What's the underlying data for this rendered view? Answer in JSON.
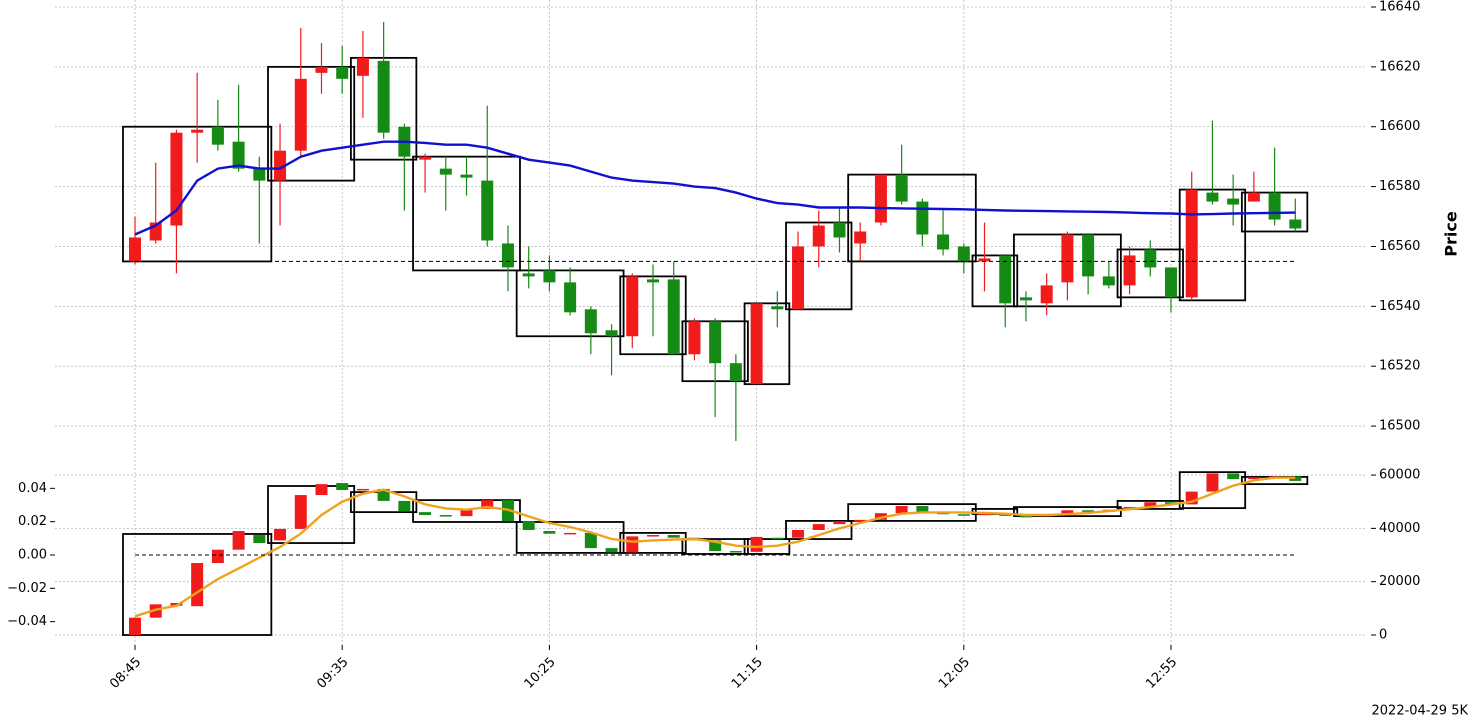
{
  "chart_data": [
    {
      "type": "candlestick",
      "ylabel": "Price",
      "up_color": "#f21b1b",
      "down_color": "#158a15",
      "grid": true,
      "y_side": "right",
      "categories": [
        "08:45",
        null,
        null,
        null,
        null,
        null,
        null,
        null,
        null,
        null,
        "09:35",
        null,
        null,
        null,
        null,
        null,
        null,
        null,
        null,
        null,
        "10:25",
        null,
        null,
        null,
        null,
        null,
        null,
        null,
        null,
        null,
        "11:15",
        null,
        null,
        null,
        null,
        null,
        null,
        null,
        null,
        null,
        "12:05",
        null,
        null,
        null,
        null,
        null,
        null,
        null,
        null,
        null,
        "12:55",
        null,
        null,
        null,
        null,
        null,
        null
      ],
      "open": [
        16555,
        16562,
        16567,
        16598,
        16600,
        16595,
        16586,
        16582,
        16592,
        16618,
        16620,
        16617,
        16622,
        16600,
        16589,
        16586,
        16584,
        16582,
        16561,
        16551,
        16552,
        16548,
        16539,
        16532,
        16530,
        16549,
        16549,
        16524,
        16535,
        16521,
        16514,
        16540,
        16539,
        16560,
        16568,
        16561,
        16568,
        16584,
        16575,
        16564,
        16560,
        16555,
        16557,
        16543,
        16541,
        16548,
        16564,
        16550,
        16547,
        16559,
        16553,
        16543,
        16578,
        16576,
        16575,
        16578,
        16569
      ],
      "high": [
        16570,
        16588,
        16599,
        16618,
        16609,
        16614,
        16590,
        16601,
        16633,
        16628,
        16627,
        16632,
        16635,
        16601,
        16591,
        16590,
        16590,
        16607,
        16567,
        16560,
        16557,
        16553,
        16540,
        16534,
        16551,
        16554,
        16555,
        16536,
        16536,
        16524,
        16541,
        16545,
        16565,
        16572,
        16573,
        16568,
        16584,
        16594,
        16576,
        16572,
        16561,
        16568,
        16557,
        16545,
        16551,
        16565,
        16564,
        16555,
        16560,
        16562,
        16553,
        16585,
        16602,
        16584,
        16585,
        16593,
        16576
      ],
      "low": [
        16554,
        16561,
        16551,
        16588,
        16592,
        16585,
        16561,
        16567,
        16590,
        16611,
        16611,
        16603,
        16596,
        16572,
        16578,
        16572,
        16577,
        16560,
        16545,
        16546,
        16545,
        16537,
        16524,
        16517,
        16526,
        16530,
        16524,
        16522,
        16503,
        16495,
        16514,
        16533,
        16539,
        16553,
        16558,
        16555,
        16567,
        16574,
        16560,
        16557,
        16551,
        16545,
        16533,
        16535,
        16537,
        16542,
        16544,
        16546,
        16544,
        16550,
        16538,
        16542,
        16574,
        16567,
        16575,
        16567,
        16565
      ],
      "close": [
        16563,
        16568,
        16598,
        16599,
        16594,
        16586,
        16582,
        16592,
        16616,
        16620,
        16616,
        16623,
        16598,
        16590,
        16590,
        16584,
        16583,
        16562,
        16553,
        16550,
        16548,
        16538,
        16531,
        16530,
        16550,
        16548,
        16524,
        16535,
        16521,
        16515,
        16541,
        16539,
        16560,
        16567,
        16563,
        16565,
        16584,
        16575,
        16564,
        16559,
        16555,
        16556,
        16541,
        16542,
        16547,
        16564,
        16550,
        16547,
        16557,
        16553,
        16543,
        16579,
        16575,
        16574,
        16578,
        16569,
        16566
      ],
      "ma": {
        "color": "#1010d0",
        "values": [
          16564,
          16567,
          16572,
          16582,
          16586,
          16587,
          16586,
          16586,
          16590,
          16592,
          16593,
          16594,
          16595,
          16595,
          16594.6,
          16594,
          16594,
          16593,
          16591,
          16589,
          16588,
          16587,
          16585,
          16583,
          16582,
          16581.5,
          16581,
          16580,
          16579.5,
          16578,
          16576,
          16574.5,
          16574,
          16573,
          16573,
          16573,
          16572.8,
          16572.7,
          16572.6,
          16572.5,
          16572.4,
          16572.2,
          16572,
          16571.9,
          16571.8,
          16571.7,
          16571.6,
          16571.5,
          16571.3,
          16571.1,
          16571,
          16570.7,
          16570.8,
          16571,
          16571.1,
          16571.2,
          16571.3
        ]
      },
      "box_start": [
        0,
        7,
        11,
        14,
        19,
        24,
        27,
        30,
        32,
        35,
        41,
        43,
        48,
        51,
        54
      ],
      "box_end": [
        6,
        10,
        13,
        18,
        23,
        26,
        29,
        31,
        34,
        40,
        42,
        47,
        50,
        53,
        56
      ],
      "box_high": [
        16600,
        16620,
        16623,
        16590,
        16552,
        16550,
        16535,
        16541,
        16568,
        16584,
        16557,
        16564,
        16559,
        16579,
        16578
      ],
      "box_low": [
        16555,
        16582,
        16589,
        16552,
        16530,
        16524,
        16515,
        16514,
        16539,
        16555,
        16540,
        16540,
        16543,
        16542,
        16565
      ],
      "reference": 16555,
      "ylim": [
        16490,
        16642
      ],
      "yticks": [
        16500,
        16520,
        16540,
        16560,
        16580,
        16600,
        16620,
        16640
      ]
    },
    {
      "type": "candlestick",
      "up_color": "#f21b1b",
      "down_color": "#158a15",
      "grid": true,
      "open": [
        0,
        6500,
        11000,
        10800,
        27000,
        32000,
        37500,
        35500,
        39800,
        52500,
        57000,
        54400,
        54800,
        50300,
        46100,
        45000,
        44600,
        47300,
        50600,
        42700,
        39000,
        38000,
        38300,
        32600,
        31000,
        37000,
        37500,
        36500,
        35500,
        31500,
        31200,
        36500,
        36500,
        39400,
        41600,
        42700,
        43200,
        45700,
        48400,
        45900,
        45300,
        45000,
        45500,
        44700,
        44500,
        45200,
        46800,
        46200,
        47000,
        48000,
        49800,
        49000,
        53800,
        60600,
        58500,
        59200,
        59500
      ],
      "close": [
        6500,
        11500,
        12000,
        27000,
        32000,
        39000,
        34500,
        39800,
        52500,
        56600,
        54400,
        54800,
        50300,
        46500,
        45000,
        44600,
        47300,
        50600,
        42700,
        39400,
        38000,
        38300,
        32600,
        31000,
        37000,
        37500,
        36500,
        35500,
        31500,
        31200,
        36800,
        36300,
        39400,
        41600,
        42700,
        43200,
        45700,
        48400,
        45900,
        45300,
        45000,
        45500,
        44700,
        44500,
        45200,
        46800,
        46200,
        47000,
        48000,
        49800,
        49000,
        53800,
        60600,
        58500,
        59200,
        59500,
        57800
      ],
      "ma": {
        "color": "#f0a21e",
        "values": [
          7000,
          9500,
          11000,
          16000,
          21000,
          25000,
          29000,
          33000,
          38000,
          45000,
          50000,
          53000,
          54500,
          52000,
          49000,
          47500,
          47000,
          48000,
          47000,
          44500,
          42000,
          40500,
          38500,
          36000,
          35000,
          35500,
          35800,
          36000,
          35000,
          33500,
          33000,
          33500,
          35000,
          37500,
          40000,
          42000,
          44000,
          45500,
          46000,
          46000,
          46000,
          45800,
          45500,
          45000,
          45000,
          45300,
          45800,
          46500,
          47200,
          48000,
          49000,
          50000,
          53000,
          56000,
          58000,
          59000,
          59000
        ]
      },
      "box_high": [
        37900,
        55900,
        53600,
        50600,
        42400,
        38300,
        36000,
        36000,
        42800,
        49100,
        47300,
        48000,
        50300,
        61100,
        59300
      ],
      "box_low": [
        0,
        34500,
        46100,
        42400,
        30800,
        30800,
        30400,
        30400,
        36000,
        42800,
        45400,
        44600,
        47300,
        47600,
        56600
      ],
      "reference": 0,
      "ylim": [
        -0.054,
        0.051
      ],
      "yticks": [
        {
          "value": -0.04,
          "label": "−0.04"
        },
        {
          "value": -0.02,
          "label": "−0.02"
        },
        {
          "value": 0,
          "label": "0.00"
        },
        {
          "value": 0.02,
          "label": "0.02"
        },
        {
          "value": 0.04,
          "label": "0.04"
        }
      ],
      "y2lim": [
        -3750,
        61900
      ],
      "y2ticks": [
        0,
        20000,
        40000,
        60000
      ]
    }
  ],
  "footer": "2022-04-29 5K"
}
